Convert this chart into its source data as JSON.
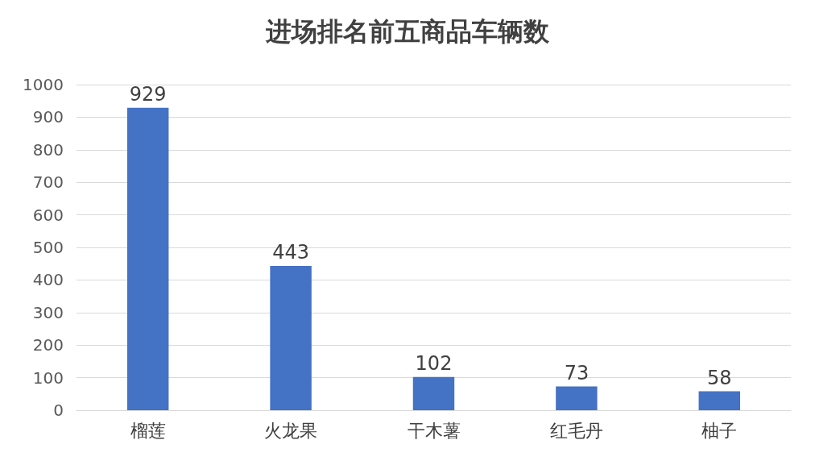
{
  "chart_data": {
    "type": "bar",
    "title": "进场排名前五商品车辆数",
    "categories": [
      "榴莲",
      "火龙果",
      "干木薯",
      "红毛丹",
      "柚子"
    ],
    "values": [
      929,
      443,
      102,
      73,
      58
    ],
    "color": "#4472c4",
    "ylim": [
      0,
      1000
    ],
    "yticks": [
      0,
      100,
      200,
      300,
      400,
      500,
      600,
      700,
      800,
      900,
      1000
    ],
    "grid": "y",
    "data_labels": true
  }
}
